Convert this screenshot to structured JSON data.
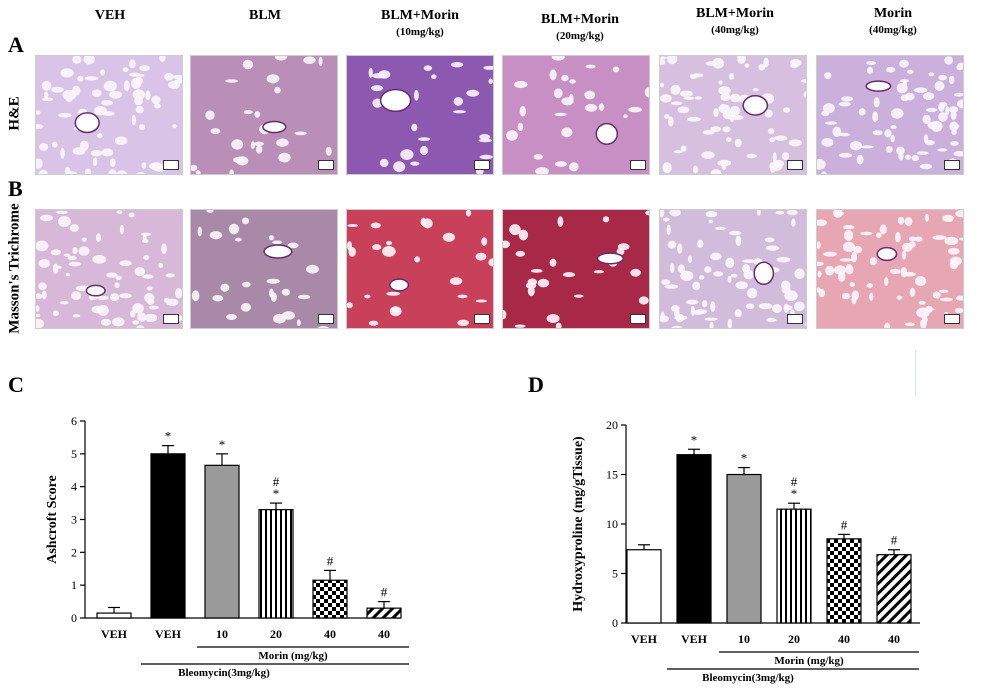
{
  "figure": {
    "column_headers": [
      {
        "title": "VEH",
        "sub": ""
      },
      {
        "title": "BLM",
        "sub": ""
      },
      {
        "title": "BLM+Morin",
        "sub": "(10mg/kg)"
      },
      {
        "title": "BLM+Morin",
        "sub": "(20mg/kg)"
      },
      {
        "title": "BLM+Morin",
        "sub": "(40mg/kg)"
      },
      {
        "title": "Morin",
        "sub": "(40mg/kg)"
      }
    ],
    "panel_letters": {
      "a": "A",
      "b": "B",
      "c": "C",
      "d": "D"
    },
    "row_labels": {
      "he": "H&E",
      "masson": "Masson's Trichrome"
    },
    "tile_colors": {
      "he": [
        "#d9c4e8",
        "#b98fb8",
        "#8c58b0",
        "#c78fc4",
        "#d7bfe0",
        "#ccb0dc"
      ],
      "masson": [
        "#d8b8d8",
        "#a88aa8",
        "#c8405a",
        "#a82848",
        "#d2bcdc",
        "#e6a6b4"
      ]
    }
  },
  "chart_data": [
    {
      "type": "bar",
      "panel": "C",
      "ylabel": "Ashcroft Score",
      "ylim": [
        0,
        6
      ],
      "yticks": [
        0,
        1,
        2,
        3,
        4,
        5,
        6
      ],
      "categories": [
        "VEH",
        "VEH",
        "10",
        "20",
        "40",
        "40"
      ],
      "values": [
        0.15,
        5.0,
        4.65,
        3.3,
        1.15,
        0.3
      ],
      "errors": [
        0.17,
        0.25,
        0.35,
        0.2,
        0.3,
        0.2
      ],
      "annotations": [
        "",
        "*",
        "*",
        "#\n*",
        "#",
        "#"
      ],
      "fills": [
        "white",
        "black",
        "gray",
        "vstripes",
        "checker",
        "diag"
      ],
      "group_labels": {
        "morin": "Morin (mg/kg)",
        "bleomycin": "Bleomycin(3mg/kg)"
      }
    },
    {
      "type": "bar",
      "panel": "D",
      "ylabel": "Hydroxyproline (mg/gTissue)",
      "ylim": [
        0,
        20
      ],
      "yticks": [
        0,
        5,
        10,
        15,
        20
      ],
      "categories": [
        "VEH",
        "VEH",
        "10",
        "20",
        "40",
        "40"
      ],
      "values": [
        7.4,
        17.0,
        15.0,
        11.5,
        8.5,
        6.9
      ],
      "errors": [
        0.5,
        0.55,
        0.7,
        0.6,
        0.45,
        0.5
      ],
      "annotations": [
        "",
        "*",
        "*",
        "#\n*",
        "#",
        "#"
      ],
      "fills": [
        "white",
        "black",
        "gray",
        "vstripes",
        "checker",
        "diag"
      ],
      "group_labels": {
        "morin": "Morin (mg/kg)",
        "bleomycin": "Bleomycin(3mg/kg)"
      }
    }
  ]
}
